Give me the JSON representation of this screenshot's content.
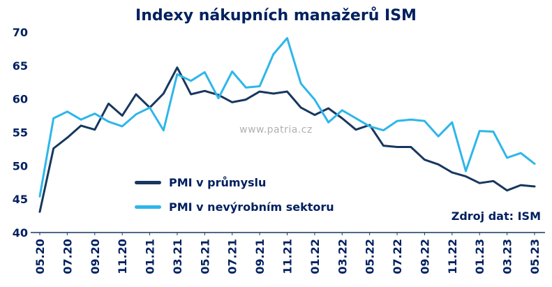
{
  "header": {
    "title": "Indexy nákupních manažerů ISM"
  },
  "watermark": "www.patria.cz",
  "source_note": "Zdroj dat: ISM",
  "legend": {
    "items": [
      {
        "label": "PMI v průmyslu",
        "color": "#17375E"
      },
      {
        "label": "PMI v nevýrobním sektoru",
        "color": "#2EB6EA"
      }
    ]
  },
  "chart_data": {
    "type": "line",
    "title": "Indexy nákupních manažerů ISM",
    "xlabel": "",
    "ylabel": "",
    "ylim": [
      40,
      70
    ],
    "yticks": [
      40,
      45,
      50,
      55,
      60,
      65,
      70
    ],
    "grid": false,
    "legend_position": "inside-lower-left",
    "axis_color": "#17375E",
    "x_tick_every": 2,
    "x": [
      "05.20",
      "06.20",
      "07.20",
      "08.20",
      "09.20",
      "10.20",
      "11.20",
      "12.20",
      "01.21",
      "02.21",
      "03.21",
      "04.21",
      "05.21",
      "06.21",
      "07.21",
      "08.21",
      "09.21",
      "10.21",
      "11.21",
      "12.21",
      "01.22",
      "02.22",
      "03.22",
      "04.22",
      "05.22",
      "06.22",
      "07.22",
      "08.22",
      "09.22",
      "10.22",
      "11.22",
      "12.22",
      "01.23",
      "02.23",
      "03.23",
      "04.23",
      "05.23"
    ],
    "series": [
      {
        "name": "PMI v průmyslu",
        "color": "#17375E",
        "values": [
          43.1,
          52.6,
          54.2,
          56.0,
          55.4,
          59.3,
          57.5,
          60.7,
          58.7,
          60.8,
          64.7,
          60.7,
          61.2,
          60.6,
          59.5,
          59.9,
          61.1,
          60.8,
          61.1,
          58.7,
          57.6,
          58.6,
          57.1,
          55.4,
          56.1,
          53.0,
          52.8,
          52.8,
          50.9,
          50.2,
          49.0,
          48.4,
          47.4,
          47.7,
          46.3,
          47.1,
          46.9
        ]
      },
      {
        "name": "PMI v nevýrobním sektoru",
        "color": "#2EB6EA",
        "values": [
          45.4,
          57.1,
          58.1,
          56.9,
          57.8,
          56.6,
          55.9,
          57.7,
          58.7,
          55.3,
          63.7,
          62.7,
          64.0,
          60.1,
          64.1,
          61.7,
          61.9,
          66.7,
          69.1,
          62.3,
          59.9,
          56.5,
          58.3,
          57.1,
          55.9,
          55.3,
          56.7,
          56.9,
          56.7,
          54.4,
          56.5,
          49.2,
          55.2,
          55.1,
          51.2,
          51.9,
          50.3
        ]
      }
    ]
  }
}
